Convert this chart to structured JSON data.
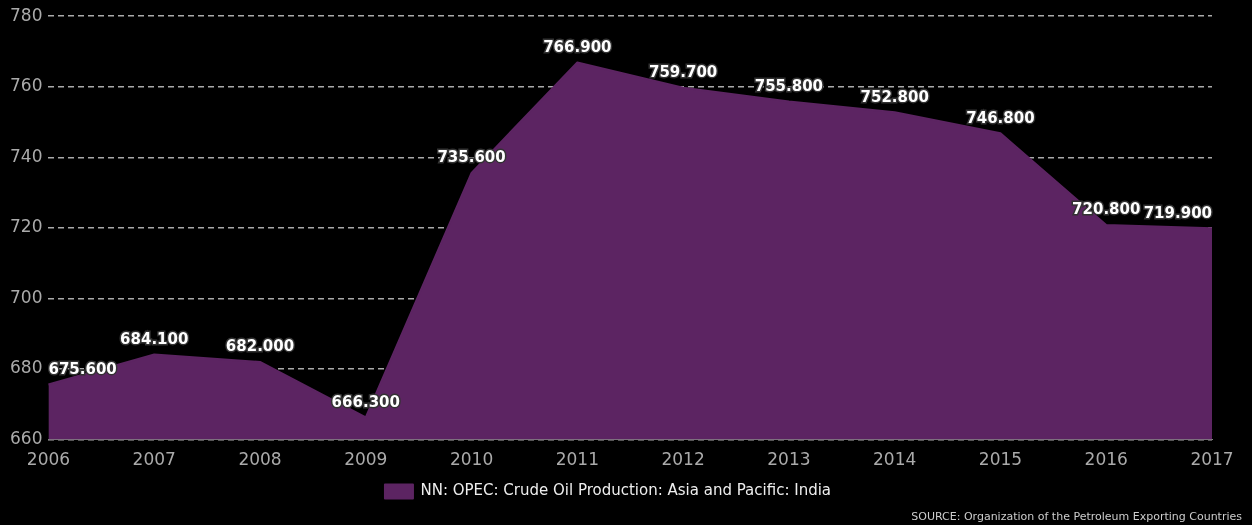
{
  "chart_data": {
    "type": "area",
    "categories": [
      "2006",
      "2007",
      "2008",
      "2009",
      "2010",
      "2011",
      "2012",
      "2013",
      "2014",
      "2015",
      "2016",
      "2017"
    ],
    "series": [
      {
        "name": "NN: OPEC: Crude Oil Production: Asia and Pacific: India",
        "color": "#5c2462",
        "values": [
          675.6,
          684.1,
          682.0,
          666.3,
          735.6,
          766.9,
          759.7,
          755.8,
          752.8,
          746.8,
          720.8,
          719.9
        ],
        "value_labels": [
          "675.600",
          "684.100",
          "682.000",
          "666.300",
          "735.600",
          "766.900",
          "759.700",
          "755.800",
          "752.800",
          "746.800",
          "720.800",
          "719.900"
        ]
      }
    ],
    "ylim": [
      660,
      780
    ],
    "yticks": [
      660,
      680,
      700,
      720,
      740,
      760,
      780
    ],
    "grid": "y",
    "legend": "bottom",
    "annotations": [
      "SOURCE: Organization of the Petroleum Exporting Countries"
    ]
  }
}
